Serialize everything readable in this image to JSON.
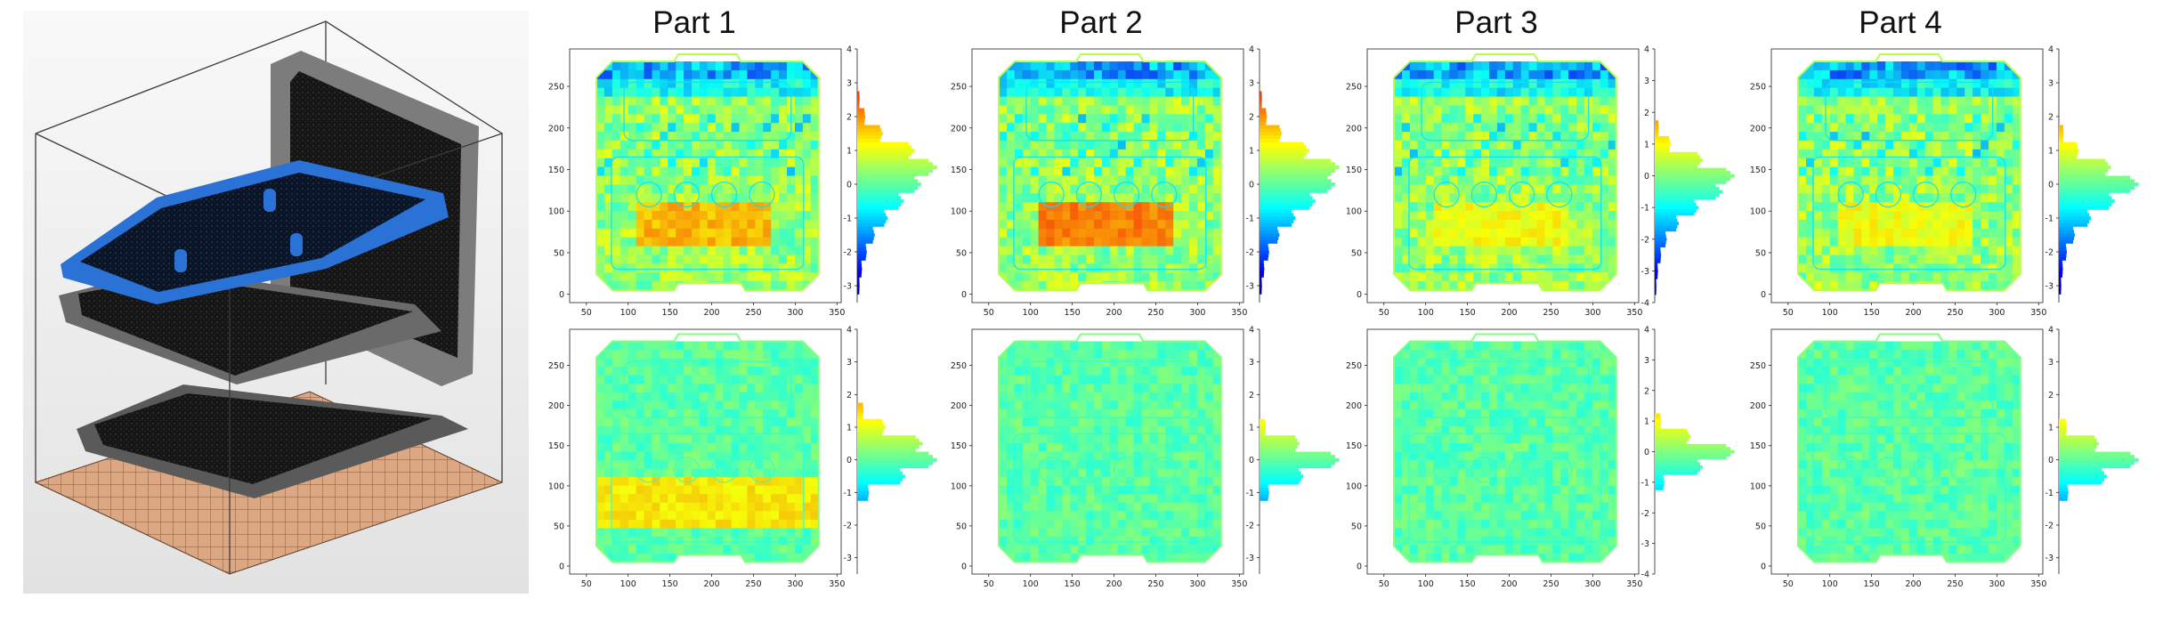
{
  "figure": {
    "part_titles": [
      "Part 1",
      "Part 2",
      "Part 3",
      "Part 4"
    ],
    "colormap": "jet"
  },
  "chart_data": [
    {
      "type": "heatmap",
      "part": "Part 1",
      "row": "top",
      "title": "Part 1",
      "x_ticks": [
        50,
        100,
        150,
        200,
        250,
        300,
        350
      ],
      "y_ticks": [
        0,
        50,
        100,
        150,
        200,
        250
      ],
      "xlim": [
        30,
        355
      ],
      "ylim": [
        -10,
        295
      ],
      "colorbar_ticks": [
        -3,
        -2,
        -1,
        0,
        1,
        2,
        3,
        4
      ],
      "colorbar_range": [
        -3.5,
        4
      ],
      "histogram": {
        "bin_centers": [
          -3.0,
          -2.5,
          -2.0,
          -1.5,
          -1.0,
          -0.5,
          0.0,
          0.5,
          1.0,
          1.5,
          2.0,
          2.5
        ],
        "relative_counts": [
          0.03,
          0.06,
          0.12,
          0.22,
          0.38,
          0.58,
          0.8,
          1.0,
          0.72,
          0.32,
          0.1,
          0.03
        ]
      }
    },
    {
      "type": "heatmap",
      "part": "Part 2",
      "row": "top",
      "title": "Part 2",
      "x_ticks": [
        50,
        100,
        150,
        200,
        250,
        300,
        350
      ],
      "y_ticks": [
        0,
        50,
        100,
        150,
        200,
        250
      ],
      "xlim": [
        30,
        355
      ],
      "ylim": [
        -10,
        295
      ],
      "colorbar_ticks": [
        -3,
        -2,
        -1,
        0,
        1,
        2,
        3,
        4
      ],
      "colorbar_range": [
        -3.5,
        4
      ],
      "histogram": {
        "bin_centers": [
          -3.0,
          -2.5,
          -2.0,
          -1.5,
          -1.0,
          -0.5,
          0.0,
          0.5,
          1.0,
          1.5,
          2.0,
          2.5
        ],
        "relative_counts": [
          0.03,
          0.06,
          0.12,
          0.25,
          0.45,
          0.7,
          0.95,
          1.0,
          0.62,
          0.28,
          0.09,
          0.03
        ]
      }
    },
    {
      "type": "heatmap",
      "part": "Part 3",
      "row": "top",
      "title": "Part 3",
      "x_ticks": [
        50,
        100,
        150,
        200,
        250,
        300,
        350
      ],
      "y_ticks": [
        0,
        50,
        100,
        150,
        200,
        250
      ],
      "xlim": [
        30,
        355
      ],
      "ylim": [
        -10,
        295
      ],
      "colorbar_ticks": [
        -4,
        -3,
        -2,
        -1,
        0,
        1,
        2,
        3,
        4
      ],
      "colorbar_range": [
        -4,
        4
      ],
      "histogram": {
        "bin_centers": [
          -3.5,
          -3.0,
          -2.5,
          -2.0,
          -1.5,
          -1.0,
          -0.5,
          0.0,
          0.5,
          1.0,
          1.5
        ],
        "relative_counts": [
          0.02,
          0.04,
          0.08,
          0.15,
          0.3,
          0.55,
          0.85,
          1.0,
          0.6,
          0.2,
          0.05
        ]
      }
    },
    {
      "type": "heatmap",
      "part": "Part 4",
      "row": "top",
      "title": "Part 4",
      "x_ticks": [
        50,
        100,
        150,
        200,
        250,
        300,
        350
      ],
      "y_ticks": [
        0,
        50,
        100,
        150,
        200,
        250
      ],
      "xlim": [
        30,
        355
      ],
      "ylim": [
        -10,
        295
      ],
      "colorbar_ticks": [
        -3,
        -2,
        -1,
        0,
        1,
        2,
        3,
        4
      ],
      "colorbar_range": [
        -3.5,
        4
      ],
      "histogram": {
        "bin_centers": [
          -3.0,
          -2.5,
          -2.0,
          -1.5,
          -1.0,
          -0.5,
          0.0,
          0.5,
          1.0,
          1.5
        ],
        "relative_counts": [
          0.03,
          0.05,
          0.1,
          0.2,
          0.4,
          0.7,
          1.0,
          0.65,
          0.25,
          0.06
        ]
      }
    },
    {
      "type": "heatmap",
      "part": "Part 1",
      "row": "bottom",
      "x_ticks": [
        50,
        100,
        150,
        200,
        250,
        300,
        350
      ],
      "y_ticks": [
        0,
        50,
        100,
        150,
        200,
        250
      ],
      "xlim": [
        30,
        355
      ],
      "ylim": [
        -10,
        295
      ],
      "colorbar_ticks": [
        -3,
        -2,
        -1,
        0,
        1,
        2,
        3,
        4
      ],
      "colorbar_range": [
        -3.5,
        4
      ],
      "histogram": {
        "bin_centers": [
          -1.0,
          -0.5,
          0.0,
          0.5,
          1.0,
          1.5
        ],
        "relative_counts": [
          0.15,
          0.6,
          1.0,
          0.82,
          0.35,
          0.08
        ]
      }
    },
    {
      "type": "heatmap",
      "part": "Part 2",
      "row": "bottom",
      "x_ticks": [
        50,
        100,
        150,
        200,
        250,
        300,
        350
      ],
      "y_ticks": [
        0,
        50,
        100,
        150,
        200,
        250
      ],
      "xlim": [
        30,
        355
      ],
      "ylim": [
        -10,
        295
      ],
      "colorbar_ticks": [
        -3,
        -2,
        -1,
        0,
        1,
        2,
        3,
        4
      ],
      "colorbar_range": [
        -3.5,
        4
      ],
      "histogram": {
        "bin_centers": [
          -1.0,
          -0.5,
          0.0,
          0.5,
          1.0
        ],
        "relative_counts": [
          0.12,
          0.55,
          1.0,
          0.5,
          0.08
        ]
      }
    },
    {
      "type": "heatmap",
      "part": "Part 3",
      "row": "bottom",
      "x_ticks": [
        50,
        100,
        150,
        200,
        250,
        300,
        350
      ],
      "y_ticks": [
        0,
        50,
        100,
        150,
        200,
        250
      ],
      "xlim": [
        30,
        355
      ],
      "ylim": [
        -10,
        295
      ],
      "colorbar_ticks": [
        -4,
        -3,
        -2,
        -1,
        0,
        1,
        2,
        3,
        4
      ],
      "colorbar_range": [
        -4,
        4
      ],
      "histogram": {
        "bin_centers": [
          -1.0,
          -0.5,
          0.0,
          0.5,
          1.0
        ],
        "relative_counts": [
          0.12,
          0.6,
          1.0,
          0.45,
          0.08
        ]
      }
    },
    {
      "type": "heatmap",
      "part": "Part 4",
      "row": "bottom",
      "x_ticks": [
        50,
        100,
        150,
        200,
        250,
        300,
        350
      ],
      "y_ticks": [
        0,
        50,
        100,
        150,
        200,
        250
      ],
      "xlim": [
        30,
        355
      ],
      "ylim": [
        -10,
        295
      ],
      "colorbar_ticks": [
        -3,
        -2,
        -1,
        0,
        1,
        2,
        3,
        4
      ],
      "colorbar_range": [
        -3.5,
        4
      ],
      "histogram": {
        "bin_centers": [
          -1.0,
          -0.5,
          0.0,
          0.5,
          1.0
        ],
        "relative_counts": [
          0.12,
          0.6,
          1.0,
          0.5,
          0.1
        ]
      }
    }
  ]
}
